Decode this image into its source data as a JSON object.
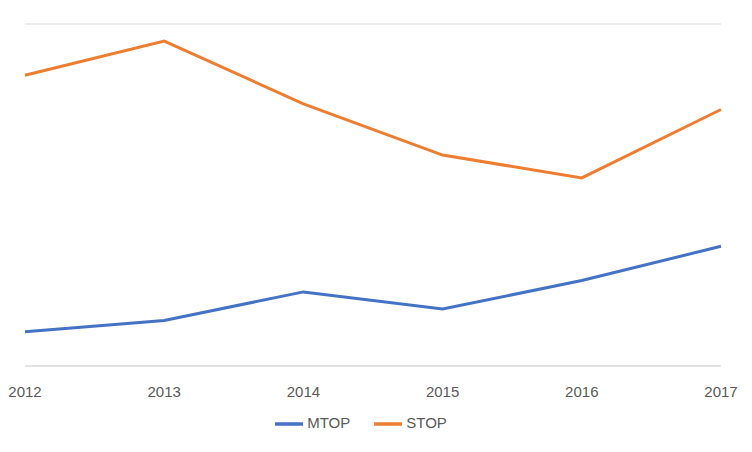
{
  "chart_data": {
    "type": "line",
    "categories": [
      "2012",
      "2013",
      "2014",
      "2015",
      "2016",
      "2017"
    ],
    "series": [
      {
        "name": "MTOP",
        "color": "#4472c4",
        "values": [
          0.6,
          0.8,
          1.3,
          1.0,
          1.5,
          2.1
        ]
      },
      {
        "name": "STOP",
        "color": "#ed7d31",
        "values": [
          5.1,
          5.7,
          4.6,
          3.7,
          3.3,
          4.5
        ]
      }
    ],
    "ylim": [
      0,
      6
    ],
    "yticks": [
      0,
      1,
      2,
      3,
      4,
      5,
      6
    ],
    "grid": true,
    "tick_labels": "x",
    "legend": "bottom"
  }
}
